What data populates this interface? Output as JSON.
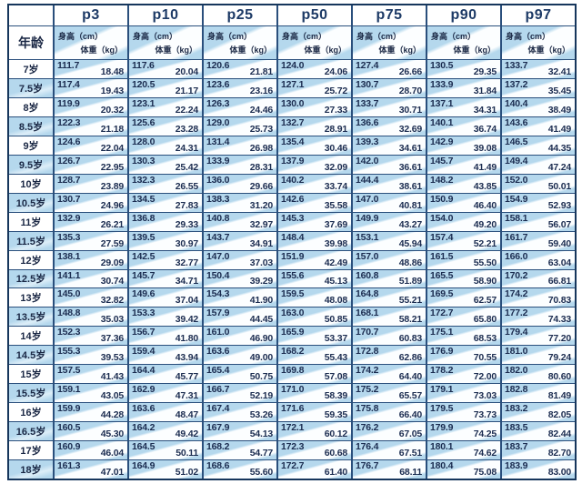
{
  "table": {
    "age_header": "年龄",
    "percentiles": [
      "p3",
      "p10",
      "p25",
      "p50",
      "p75",
      "p90",
      "p97"
    ],
    "height_label": "身高（cm）",
    "weight_label": "体重（kg）",
    "rows": [
      {
        "age": "7岁",
        "cells": [
          [
            "111.7",
            "18.48"
          ],
          [
            "117.6",
            "20.04"
          ],
          [
            "120.6",
            "21.81"
          ],
          [
            "124.0",
            "24.06"
          ],
          [
            "127.4",
            "26.66"
          ],
          [
            "130.5",
            "29.35"
          ],
          [
            "133.7",
            "32.41"
          ]
        ]
      },
      {
        "age": "7.5岁",
        "cells": [
          [
            "117.4",
            "19.43"
          ],
          [
            "120.5",
            "21.17"
          ],
          [
            "123.6",
            "23.16"
          ],
          [
            "127.1",
            "25.72"
          ],
          [
            "130.7",
            "28.70"
          ],
          [
            "133.9",
            "31.84"
          ],
          [
            "137.2",
            "35.45"
          ]
        ]
      },
      {
        "age": "8岁",
        "cells": [
          [
            "119.9",
            "20.32"
          ],
          [
            "123.1",
            "22.24"
          ],
          [
            "126.3",
            "24.46"
          ],
          [
            "130.0",
            "27.33"
          ],
          [
            "133.7",
            "30.71"
          ],
          [
            "137.1",
            "34.31"
          ],
          [
            "140.4",
            "38.49"
          ]
        ]
      },
      {
        "age": "8.5岁",
        "cells": [
          [
            "122.3",
            "21.18"
          ],
          [
            "125.6",
            "23.28"
          ],
          [
            "129.0",
            "25.73"
          ],
          [
            "132.7",
            "28.91"
          ],
          [
            "136.6",
            "32.69"
          ],
          [
            "140.1",
            "36.74"
          ],
          [
            "143.6",
            "41.49"
          ]
        ]
      },
      {
        "age": "9岁",
        "cells": [
          [
            "124.6",
            "22.04"
          ],
          [
            "128.0",
            "24.31"
          ],
          [
            "131.4",
            "26.98"
          ],
          [
            "135.4",
            "30.46"
          ],
          [
            "139.3",
            "34.61"
          ],
          [
            "142.9",
            "39.08"
          ],
          [
            "146.5",
            "44.35"
          ]
        ]
      },
      {
        "age": "9.5岁",
        "cells": [
          [
            "126.7",
            "22.95"
          ],
          [
            "130.3",
            "25.42"
          ],
          [
            "133.9",
            "28.31"
          ],
          [
            "137.9",
            "32.09"
          ],
          [
            "142.0",
            "36.61"
          ],
          [
            "145.7",
            "41.49"
          ],
          [
            "149.4",
            "47.24"
          ]
        ]
      },
      {
        "age": "10岁",
        "cells": [
          [
            "128.7",
            "23.89"
          ],
          [
            "132.3",
            "26.55"
          ],
          [
            "136.0",
            "29.66"
          ],
          [
            "140.2",
            "33.74"
          ],
          [
            "144.4",
            "38.61"
          ],
          [
            "148.2",
            "43.85"
          ],
          [
            "152.0",
            "50.01"
          ]
        ]
      },
      {
        "age": "10.5岁",
        "cells": [
          [
            "130.7",
            "24.96"
          ],
          [
            "134.5",
            "27.83"
          ],
          [
            "138.3",
            "31.20"
          ],
          [
            "142.6",
            "35.58"
          ],
          [
            "147.0",
            "40.81"
          ],
          [
            "150.9",
            "46.40"
          ],
          [
            "154.9",
            "52.93"
          ]
        ]
      },
      {
        "age": "11岁",
        "cells": [
          [
            "132.9",
            "26.21"
          ],
          [
            "136.8",
            "29.33"
          ],
          [
            "140.8",
            "32.97"
          ],
          [
            "145.3",
            "37.69"
          ],
          [
            "149.9",
            "43.27"
          ],
          [
            "154.0",
            "49.20"
          ],
          [
            "158.1",
            "56.07"
          ]
        ]
      },
      {
        "age": "11.5岁",
        "cells": [
          [
            "135.3",
            "27.59"
          ],
          [
            "139.5",
            "30.97"
          ],
          [
            "143.7",
            "34.91"
          ],
          [
            "148.4",
            "39.98"
          ],
          [
            "153.1",
            "45.94"
          ],
          [
            "157.4",
            "52.21"
          ],
          [
            "161.7",
            "59.40"
          ]
        ]
      },
      {
        "age": "12岁",
        "cells": [
          [
            "138.1",
            "29.09"
          ],
          [
            "142.5",
            "32.77"
          ],
          [
            "147.0",
            "37.03"
          ],
          [
            "151.9",
            "42.49"
          ],
          [
            "157.0",
            "48.86"
          ],
          [
            "161.5",
            "55.50"
          ],
          [
            "166.0",
            "63.04"
          ]
        ]
      },
      {
        "age": "12.5岁",
        "cells": [
          [
            "141.1",
            "30.74"
          ],
          [
            "145.7",
            "34.71"
          ],
          [
            "150.4",
            "39.29"
          ],
          [
            "155.6",
            "45.13"
          ],
          [
            "160.8",
            "51.89"
          ],
          [
            "165.5",
            "58.90"
          ],
          [
            "170.2",
            "66.81"
          ]
        ]
      },
      {
        "age": "13岁",
        "cells": [
          [
            "145.0",
            "32.82"
          ],
          [
            "149.6",
            "37.04"
          ],
          [
            "154.3",
            "41.90"
          ],
          [
            "159.5",
            "48.08"
          ],
          [
            "164.8",
            "55.21"
          ],
          [
            "169.5",
            "62.57"
          ],
          [
            "174.2",
            "70.83"
          ]
        ]
      },
      {
        "age": "13.5岁",
        "cells": [
          [
            "148.8",
            "35.03"
          ],
          [
            "153.3",
            "39.42"
          ],
          [
            "157.9",
            "44.45"
          ],
          [
            "163.0",
            "50.85"
          ],
          [
            "168.1",
            "58.21"
          ],
          [
            "172.7",
            "65.80"
          ],
          [
            "177.2",
            "74.33"
          ]
        ]
      },
      {
        "age": "14岁",
        "cells": [
          [
            "152.3",
            "37.36"
          ],
          [
            "156.7",
            "41.80"
          ],
          [
            "161.0",
            "46.90"
          ],
          [
            "165.9",
            "53.37"
          ],
          [
            "170.7",
            "60.83"
          ],
          [
            "175.1",
            "68.53"
          ],
          [
            "179.4",
            "77.20"
          ]
        ]
      },
      {
        "age": "14.5岁",
        "cells": [
          [
            "155.3",
            "39.53"
          ],
          [
            "159.4",
            "43.94"
          ],
          [
            "163.6",
            "49.00"
          ],
          [
            "168.2",
            "55.43"
          ],
          [
            "172.8",
            "62.86"
          ],
          [
            "176.9",
            "70.55"
          ],
          [
            "181.0",
            "79.24"
          ]
        ]
      },
      {
        "age": "15岁",
        "cells": [
          [
            "157.5",
            "41.43"
          ],
          [
            "164.4",
            "45.77"
          ],
          [
            "165.4",
            "50.75"
          ],
          [
            "169.8",
            "57.08"
          ],
          [
            "174.2",
            "64.40"
          ],
          [
            "178.2",
            "72.00"
          ],
          [
            "182.0",
            "80.60"
          ]
        ]
      },
      {
        "age": "15.5岁",
        "cells": [
          [
            "159.1",
            "43.05"
          ],
          [
            "162.9",
            "47.31"
          ],
          [
            "166.7",
            "52.19"
          ],
          [
            "171.0",
            "58.39"
          ],
          [
            "175.2",
            "65.57"
          ],
          [
            "179.1",
            "73.03"
          ],
          [
            "182.8",
            "81.49"
          ]
        ]
      },
      {
        "age": "16岁",
        "cells": [
          [
            "159.9",
            "44.28"
          ],
          [
            "163.6",
            "48.47"
          ],
          [
            "167.4",
            "53.26"
          ],
          [
            "171.6",
            "59.35"
          ],
          [
            "175.8",
            "66.40"
          ],
          [
            "179.5",
            "73.73"
          ],
          [
            "183.2",
            "82.05"
          ]
        ]
      },
      {
        "age": "16.5岁",
        "cells": [
          [
            "160.5",
            "45.30"
          ],
          [
            "164.2",
            "49.42"
          ],
          [
            "167.9",
            "54.13"
          ],
          [
            "172.1",
            "60.12"
          ],
          [
            "176.2",
            "67.05"
          ],
          [
            "179.9",
            "74.25"
          ],
          [
            "183.5",
            "82.44"
          ]
        ]
      },
      {
        "age": "17岁",
        "cells": [
          [
            "160.9",
            "46.04"
          ],
          [
            "164.5",
            "50.11"
          ],
          [
            "168.2",
            "54.77"
          ],
          [
            "172.3",
            "60.68"
          ],
          [
            "176.4",
            "67.51"
          ],
          [
            "180.1",
            "74.62"
          ],
          [
            "183.7",
            "82.70"
          ]
        ]
      },
      {
        "age": "18岁",
        "cells": [
          [
            "161.3",
            "47.01"
          ],
          [
            "164.9",
            "51.02"
          ],
          [
            "168.6",
            "55.60"
          ],
          [
            "172.7",
            "61.40"
          ],
          [
            "176.7",
            "68.11"
          ],
          [
            "180.4",
            "75.08"
          ],
          [
            "183.9",
            "83.00"
          ]
        ]
      }
    ]
  },
  "colors": {
    "cell_blue": "#b5d8ed",
    "grid_line_navy": "#2a4f7c",
    "outer_border_navy": "#16365c",
    "text_navy": "#1b2c50"
  }
}
